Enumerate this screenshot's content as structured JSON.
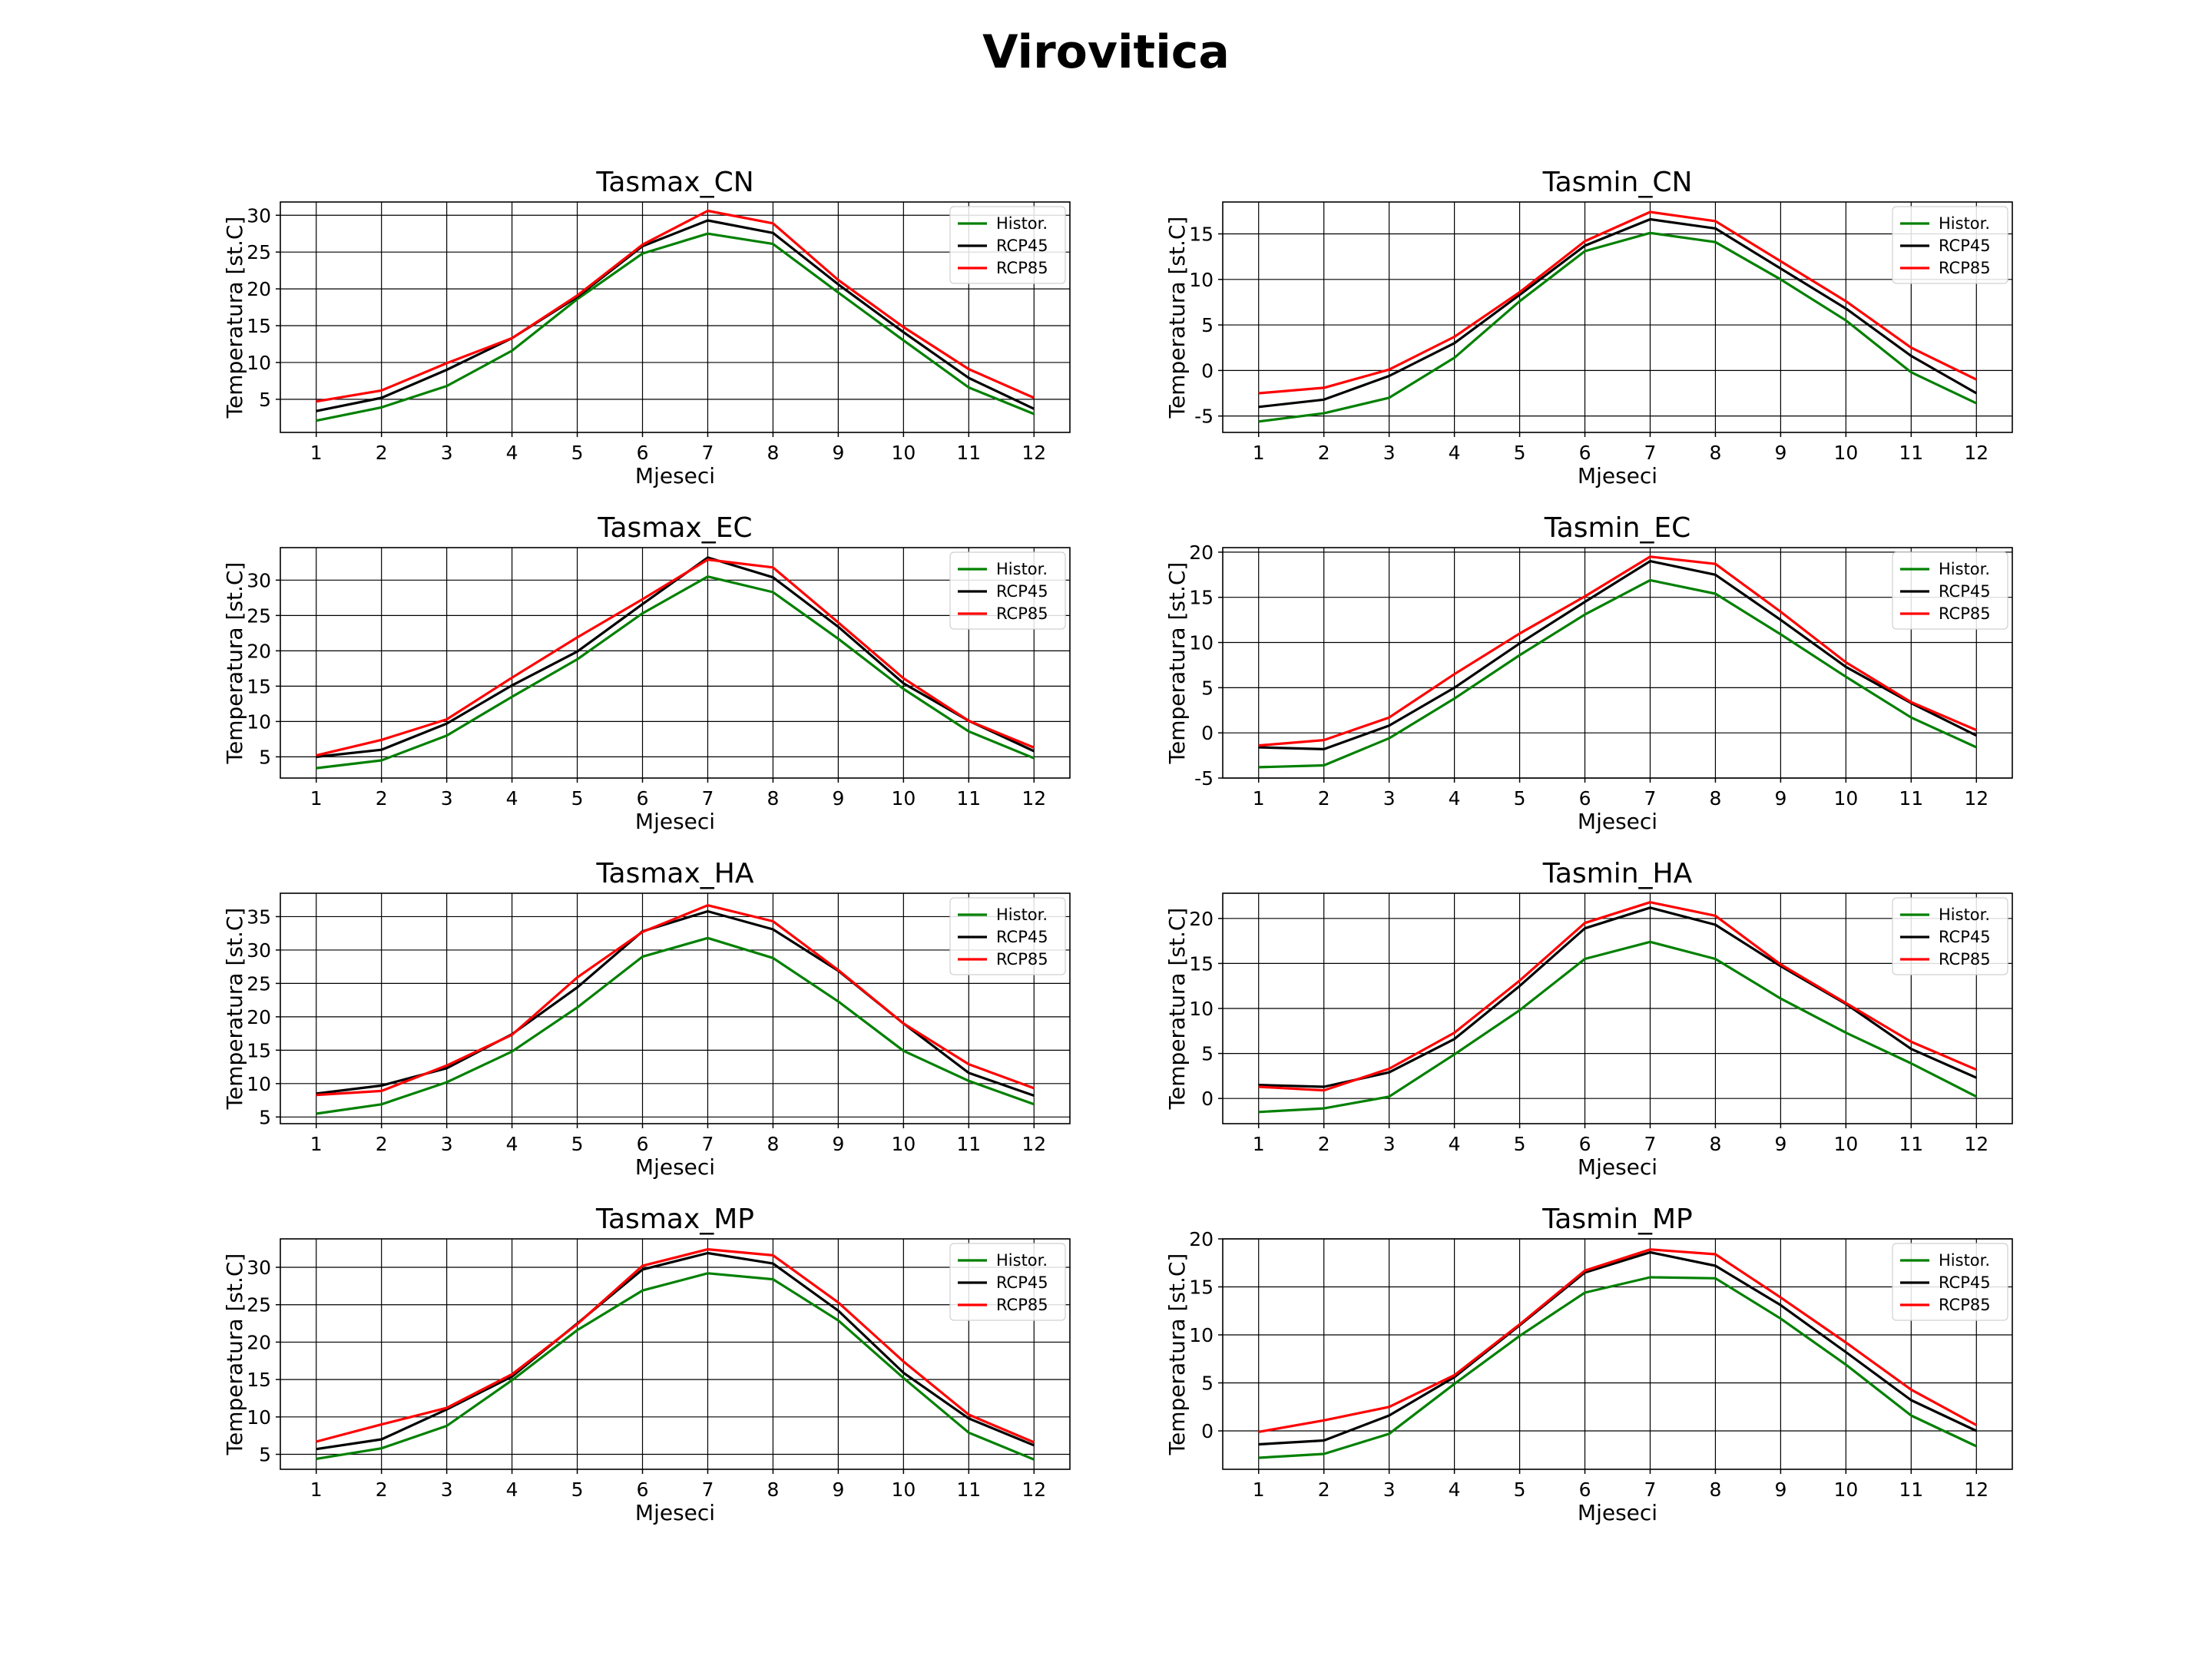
{
  "figure_title": "Virovitica",
  "colors": {
    "historical": "#008000",
    "rcp45": "#000000",
    "rcp85": "#ff0000",
    "grid": "#000000"
  },
  "chart_data": [
    {
      "type": "line",
      "title": "Tasmax_CN",
      "xlabel": "Mjeseci",
      "ylabel": "Temperatura [st.C]",
      "x": [
        1,
        2,
        3,
        4,
        5,
        6,
        7,
        8,
        9,
        10,
        11,
        12
      ],
      "xlim": [
        0.45,
        12.55
      ],
      "ylim": [
        0.5,
        31.8
      ],
      "yticks": [
        5,
        10,
        15,
        20,
        25,
        30
      ],
      "grid": true,
      "legend": "top-right",
      "series": [
        {
          "name": "Histor.",
          "values": [
            2.1,
            3.9,
            6.8,
            11.6,
            18.6,
            24.8,
            27.5,
            26.1,
            19.5,
            13.0,
            6.6,
            3.0
          ]
        },
        {
          "name": "RCP45",
          "values": [
            3.4,
            5.2,
            9.0,
            13.3,
            18.9,
            25.8,
            29.3,
            27.6,
            20.6,
            14.1,
            7.9,
            3.7
          ]
        },
        {
          "name": "RCP85",
          "values": [
            4.7,
            6.2,
            9.9,
            13.3,
            19.1,
            26.0,
            30.6,
            28.9,
            21.2,
            14.8,
            9.1,
            5.2
          ]
        }
      ]
    },
    {
      "type": "line",
      "title": "Tasmin_CN",
      "xlabel": "Mjeseci",
      "ylabel": "Temperatura [st.C]",
      "x": [
        1,
        2,
        3,
        4,
        5,
        6,
        7,
        8,
        9,
        10,
        11,
        12
      ],
      "xlim": [
        0.45,
        12.55
      ],
      "ylim": [
        -6.8,
        18.5
      ],
      "yticks": [
        -5,
        0,
        5,
        10,
        15
      ],
      "grid": true,
      "legend": "top-right",
      "series": [
        {
          "name": "Histor.",
          "values": [
            -5.6,
            -4.7,
            -3.0,
            1.4,
            7.6,
            13.1,
            15.1,
            14.1,
            10.0,
            5.5,
            -0.2,
            -3.6
          ]
        },
        {
          "name": "RCP45",
          "values": [
            -4.0,
            -3.2,
            -0.6,
            3.0,
            8.3,
            13.7,
            16.6,
            15.6,
            11.2,
            6.8,
            1.6,
            -2.5
          ]
        },
        {
          "name": "RCP85",
          "values": [
            -2.5,
            -1.9,
            0.1,
            3.7,
            8.6,
            14.2,
            17.4,
            16.4,
            12.0,
            7.6,
            2.5,
            -1.0
          ]
        }
      ]
    },
    {
      "type": "line",
      "title": "Tasmax_EC",
      "xlabel": "Mjeseci",
      "ylabel": "Temperatura [st.C]",
      "x": [
        1,
        2,
        3,
        4,
        5,
        6,
        7,
        8,
        9,
        10,
        11,
        12
      ],
      "xlim": [
        0.45,
        12.55
      ],
      "ylim": [
        2.0,
        34.6
      ],
      "yticks": [
        5,
        10,
        15,
        20,
        25,
        30
      ],
      "grid": true,
      "legend": "top-right",
      "series": [
        {
          "name": "Histor.",
          "values": [
            3.4,
            4.5,
            8.0,
            13.5,
            18.8,
            25.3,
            30.5,
            28.3,
            21.7,
            14.6,
            8.6,
            4.8
          ]
        },
        {
          "name": "RCP45",
          "values": [
            5.0,
            6.0,
            9.7,
            15.1,
            19.9,
            26.6,
            33.2,
            30.4,
            23.4,
            15.4,
            10.1,
            5.8
          ]
        },
        {
          "name": "RCP85",
          "values": [
            5.2,
            7.4,
            10.3,
            16.2,
            21.9,
            27.3,
            32.9,
            31.8,
            24.0,
            16.1,
            10.1,
            6.3
          ]
        }
      ]
    },
    {
      "type": "line",
      "title": "Tasmin_EC",
      "xlabel": "Mjeseci",
      "ylabel": "Temperatura [st.C]",
      "x": [
        1,
        2,
        3,
        4,
        5,
        6,
        7,
        8,
        9,
        10,
        11,
        12
      ],
      "xlim": [
        0.45,
        12.55
      ],
      "ylim": [
        -5.0,
        20.5
      ],
      "yticks": [
        -5,
        0,
        5,
        10,
        15,
        20
      ],
      "grid": true,
      "legend": "top-right",
      "series": [
        {
          "name": "Histor.",
          "values": [
            -3.8,
            -3.6,
            -0.6,
            3.8,
            8.6,
            13.1,
            16.9,
            15.4,
            10.9,
            6.2,
            1.7,
            -1.6
          ]
        },
        {
          "name": "RCP45",
          "values": [
            -1.6,
            -1.8,
            0.8,
            5.0,
            9.9,
            14.5,
            19.0,
            17.5,
            12.5,
            7.3,
            3.3,
            -0.3
          ]
        },
        {
          "name": "RCP85",
          "values": [
            -1.4,
            -0.8,
            1.7,
            6.5,
            11.0,
            15.1,
            19.5,
            18.7,
            13.4,
            7.8,
            3.4,
            0.3
          ]
        }
      ]
    },
    {
      "type": "line",
      "title": "Tasmax_HA",
      "xlabel": "Mjeseci",
      "ylabel": "Temperatura [st.C]",
      "x": [
        1,
        2,
        3,
        4,
        5,
        6,
        7,
        8,
        9,
        10,
        11,
        12
      ],
      "xlim": [
        0.45,
        12.55
      ],
      "ylim": [
        4.0,
        38.5
      ],
      "yticks": [
        5,
        10,
        15,
        20,
        25,
        30,
        35
      ],
      "grid": true,
      "legend": "top-right",
      "series": [
        {
          "name": "Histor.",
          "values": [
            5.5,
            6.9,
            10.2,
            14.8,
            21.4,
            29.0,
            31.8,
            28.8,
            22.3,
            14.9,
            10.4,
            6.9
          ]
        },
        {
          "name": "RCP45",
          "values": [
            8.5,
            9.7,
            12.3,
            17.4,
            24.4,
            32.8,
            35.8,
            33.1,
            26.9,
            19.0,
            11.6,
            8.2
          ]
        },
        {
          "name": "RCP85",
          "values": [
            8.3,
            8.9,
            12.7,
            17.3,
            25.9,
            32.7,
            36.7,
            34.3,
            27.0,
            19.0,
            12.9,
            9.3
          ]
        }
      ]
    },
    {
      "type": "line",
      "title": "Tasmin_HA",
      "xlabel": "Mjeseci",
      "ylabel": "Temperatura [st.C]",
      "x": [
        1,
        2,
        3,
        4,
        5,
        6,
        7,
        8,
        9,
        10,
        11,
        12
      ],
      "xlim": [
        0.45,
        12.55
      ],
      "ylim": [
        -2.8,
        22.8
      ],
      "yticks": [
        0,
        5,
        10,
        15,
        20
      ],
      "grid": true,
      "legend": "top-right",
      "series": [
        {
          "name": "Histor.",
          "values": [
            -1.5,
            -1.1,
            0.2,
            4.9,
            9.8,
            15.5,
            17.4,
            15.5,
            11.1,
            7.3,
            3.9,
            0.2
          ]
        },
        {
          "name": "RCP45",
          "values": [
            1.5,
            1.3,
            2.9,
            6.6,
            12.5,
            18.9,
            21.2,
            19.3,
            14.7,
            10.5,
            5.5,
            2.3
          ]
        },
        {
          "name": "RCP85",
          "values": [
            1.3,
            0.9,
            3.3,
            7.3,
            13.1,
            19.5,
            21.8,
            20.3,
            14.9,
            10.6,
            6.3,
            3.2
          ]
        }
      ]
    },
    {
      "type": "line",
      "title": "Tasmax_MP",
      "xlabel": "Mjeseci",
      "ylabel": "Temperatura [st.C]",
      "x": [
        1,
        2,
        3,
        4,
        5,
        6,
        7,
        8,
        9,
        10,
        11,
        12
      ],
      "xlim": [
        0.45,
        12.55
      ],
      "ylim": [
        3.0,
        33.8
      ],
      "yticks": [
        5,
        10,
        15,
        20,
        25,
        30
      ],
      "grid": true,
      "legend": "top-right",
      "series": [
        {
          "name": "Histor.",
          "values": [
            4.4,
            5.8,
            8.8,
            14.9,
            21.6,
            26.9,
            29.2,
            28.4,
            22.9,
            15.2,
            7.9,
            4.3
          ]
        },
        {
          "name": "RCP45",
          "values": [
            5.7,
            7.0,
            11.0,
            15.4,
            22.5,
            29.7,
            31.9,
            30.5,
            24.2,
            15.9,
            9.8,
            6.2
          ]
        },
        {
          "name": "RCP85",
          "values": [
            6.7,
            9.0,
            11.2,
            15.7,
            22.4,
            30.2,
            32.4,
            31.6,
            25.3,
            17.4,
            10.3,
            6.6
          ]
        }
      ]
    },
    {
      "type": "line",
      "title": "Tasmin_MP",
      "xlabel": "Mjeseci",
      "ylabel": "Temperatura [st.C]",
      "x": [
        1,
        2,
        3,
        4,
        5,
        6,
        7,
        8,
        9,
        10,
        11,
        12
      ],
      "xlim": [
        0.45,
        12.55
      ],
      "ylim": [
        -4.0,
        20.0
      ],
      "yticks": [
        0,
        5,
        10,
        15,
        20
      ],
      "grid": true,
      "legend": "top-right",
      "series": [
        {
          "name": "Histor.",
          "values": [
            -2.8,
            -2.4,
            -0.3,
            4.9,
            9.9,
            14.4,
            16.0,
            15.9,
            11.7,
            6.9,
            1.6,
            -1.6
          ]
        },
        {
          "name": "RCP45",
          "values": [
            -1.4,
            -1.0,
            1.6,
            5.6,
            11.0,
            16.5,
            18.6,
            17.2,
            13.1,
            8.2,
            3.2,
            0.0
          ]
        },
        {
          "name": "RCP85",
          "values": [
            -0.1,
            1.1,
            2.5,
            5.8,
            11.1,
            16.7,
            18.9,
            18.4,
            13.9,
            9.2,
            4.3,
            0.6
          ]
        }
      ]
    }
  ]
}
